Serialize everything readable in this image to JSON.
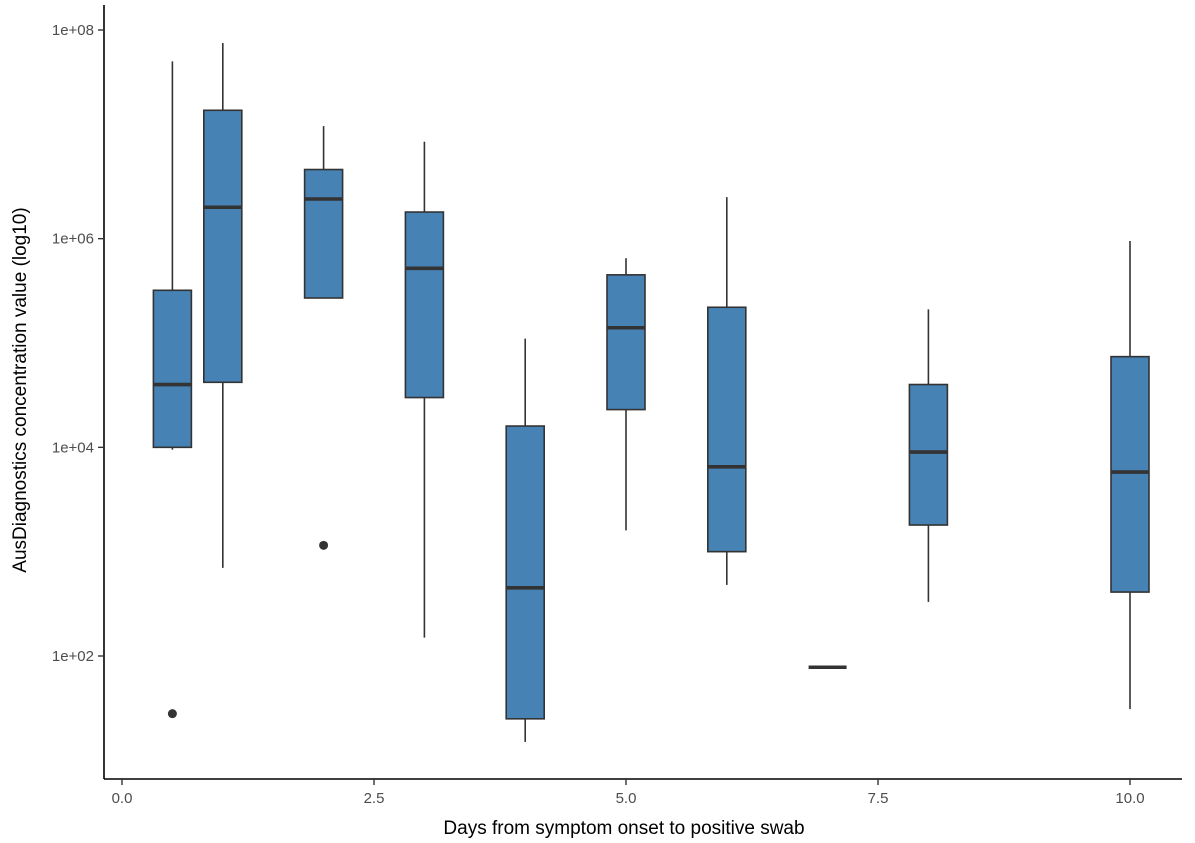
{
  "chart_data": {
    "type": "boxplot",
    "title": "",
    "xlabel": "Days from symptom onset to positive swab",
    "ylabel": "AusDiagnostics concentration value (log10)",
    "x_range": [
      0,
      10
    ],
    "y_scale": "log10",
    "y_range": [
      15,
      150000000
    ],
    "x_ticks": [
      {
        "value": 0,
        "label": "0.0"
      },
      {
        "value": 2.5,
        "label": "2.5"
      },
      {
        "value": 5,
        "label": "5.0"
      },
      {
        "value": 7.5,
        "label": "7.5"
      },
      {
        "value": 10,
        "label": "10.0"
      }
    ],
    "y_ticks": [
      {
        "value": 100,
        "label": "1e+02"
      },
      {
        "value": 10000,
        "label": "1e+04"
      },
      {
        "value": 1000000,
        "label": "1e+06"
      },
      {
        "value": 100000000,
        "label": "1e+08"
      }
    ],
    "grid": false,
    "legend": "none",
    "box_fill": "#4682b4",
    "box_stroke": "#333333",
    "boxes": [
      {
        "x": 0.5,
        "whisker_low": 9500,
        "q1": 10000,
        "median": 40000,
        "q3": 320000,
        "whisker_high": 50000000,
        "outliers": [
          28
        ]
      },
      {
        "x": 1,
        "whisker_low": 700,
        "q1": 42000,
        "median": 2000000,
        "q3": 17000000,
        "whisker_high": 75000000,
        "outliers": []
      },
      {
        "x": 2,
        "whisker_low": 270000,
        "q1": 270000,
        "median": 2400000,
        "q3": 4600000,
        "whisker_high": 12000000,
        "outliers": [
          1150
        ]
      },
      {
        "x": 3,
        "whisker_low": 150,
        "q1": 30000,
        "median": 520000,
        "q3": 1800000,
        "whisker_high": 8500000,
        "outliers": []
      },
      {
        "x": 4,
        "whisker_low": 15,
        "q1": 25,
        "median": 450,
        "q3": 16000,
        "whisker_high": 110000,
        "outliers": []
      },
      {
        "x": 5,
        "whisker_low": 1600,
        "q1": 23000,
        "median": 140000,
        "q3": 450000,
        "whisker_high": 650000,
        "outliers": []
      },
      {
        "x": 6,
        "whisker_low": 480,
        "q1": 1000,
        "median": 6500,
        "q3": 220000,
        "whisker_high": 2500000,
        "outliers": []
      },
      {
        "x": 7,
        "whisker_low": 78,
        "q1": 78,
        "median": 78,
        "q3": 78,
        "whisker_high": 78,
        "outliers": []
      },
      {
        "x": 8,
        "whisker_low": 330,
        "q1": 1800,
        "median": 9000,
        "q3": 40000,
        "whisker_high": 210000,
        "outliers": []
      },
      {
        "x": 10,
        "whisker_low": 31,
        "q1": 410,
        "median": 5800,
        "q3": 74000,
        "whisker_high": 950000,
        "outliers": []
      }
    ]
  }
}
